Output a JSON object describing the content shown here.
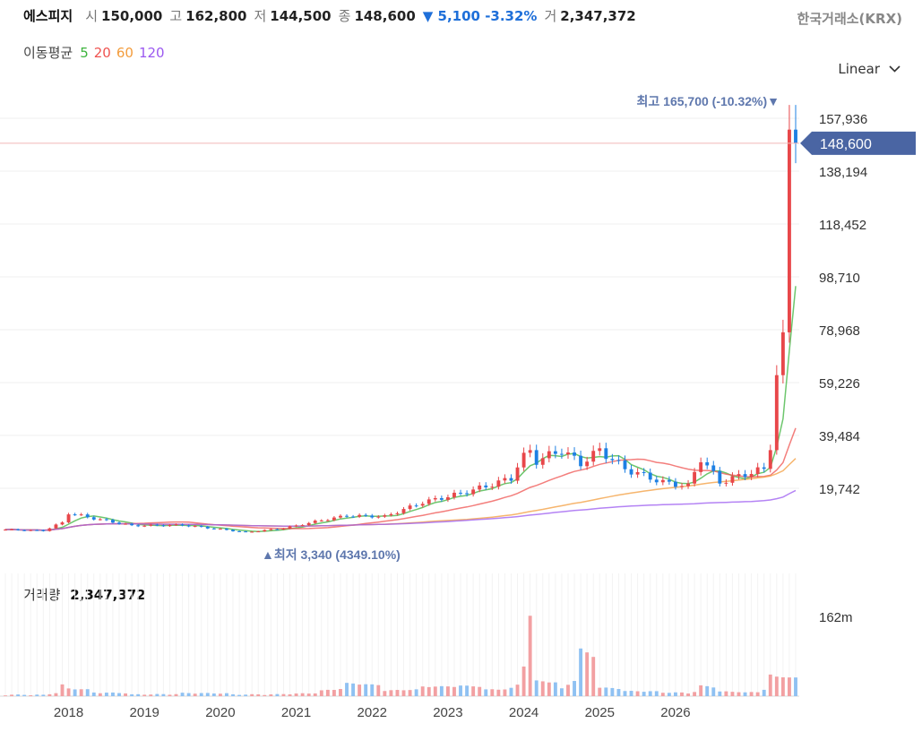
{
  "header": {
    "name": "에스피지",
    "open_label": "시",
    "open": "150,000",
    "high_label": "고",
    "high": "162,800",
    "low_label": "저",
    "low": "144,500",
    "close_label": "종",
    "close": "148,600",
    "change": "▼ 5,100 -3.32%",
    "volume_label": "거",
    "volume": "2,347,372",
    "exchange": "한국거래소(KRX)"
  },
  "moving_average": {
    "title": "이동평균",
    "periods": [
      {
        "label": "5",
        "color": "#3cb33c"
      },
      {
        "label": "20",
        "color": "#ef5350"
      },
      {
        "label": "60",
        "color": "#f39c3c"
      },
      {
        "label": "120",
        "color": "#9b59f0"
      }
    ]
  },
  "scale_select": {
    "label": "Linear",
    "icon": "chevron-down-icon"
  },
  "volume_panel": {
    "label": "거래량",
    "value": "2,347,372",
    "axis_label": "162m"
  },
  "annotations": {
    "high_text": "최고 165,700 (-10.32%)▼",
    "low_text": "▲최저 3,340 (4349.10%)",
    "last_price": "148,600"
  },
  "colors": {
    "up": "#e8474a",
    "down": "#1e80e3",
    "up_volume": "#f2a0a2",
    "down_volume": "#8fc1f2",
    "price_tag": "#4a65a3",
    "grid": "#efefef"
  },
  "chart_data": {
    "type": "candlestick",
    "interval": "monthly",
    "y_ticks": [
      "157,936",
      "138,194",
      "118,452",
      "98,710",
      "78,968",
      "59,226",
      "39,484",
      "19,742"
    ],
    "y_tick_values": [
      157936,
      138194,
      118452,
      98710,
      78968,
      59226,
      39484,
      19742
    ],
    "x_tick_labels": [
      "2018",
      "2019",
      "2020",
      "2021",
      "2022",
      "2023",
      "2024",
      "2025",
      "2026"
    ],
    "y_range": [
      0,
      172000
    ],
    "high": 165700,
    "low": 3340,
    "last": 148600,
    "volume_axis": {
      "tick": "162m",
      "tick_value": 162000000,
      "max": 162000000
    },
    "anchors": [
      {
        "t": 0,
        "c": 4300,
        "v": 1.5
      },
      {
        "t": 6,
        "c": 3900,
        "v": 1
      },
      {
        "t": 9,
        "c": 7000,
        "v": 22
      },
      {
        "t": 10,
        "c": 10500,
        "v": 14
      },
      {
        "t": 14,
        "c": 8500,
        "v": 6
      },
      {
        "t": 20,
        "c": 5800,
        "v": 2
      },
      {
        "t": 28,
        "c": 6000,
        "v": 5
      },
      {
        "t": 36,
        "c": 3900,
        "v": 2
      },
      {
        "t": 38,
        "c": 3340,
        "v": 2
      },
      {
        "t": 44,
        "c": 4800,
        "v": 3
      },
      {
        "t": 50,
        "c": 7800,
        "v": 10
      },
      {
        "t": 54,
        "c": 9500,
        "v": 25
      },
      {
        "t": 60,
        "c": 9200,
        "v": 10
      },
      {
        "t": 66,
        "c": 14500,
        "v": 18
      },
      {
        "t": 72,
        "c": 17800,
        "v": 20
      },
      {
        "t": 76,
        "c": 20500,
        "v": 12
      },
      {
        "t": 80,
        "c": 23500,
        "v": 15
      },
      {
        "t": 82,
        "c": 33000,
        "v": 60
      },
      {
        "t": 83,
        "c": 34000,
        "v": 162
      },
      {
        "t": 84,
        "c": 30000,
        "v": 30
      },
      {
        "t": 88,
        "c": 34000,
        "v": 14
      },
      {
        "t": 91,
        "c": 29000,
        "v": 95
      },
      {
        "t": 94,
        "c": 34000,
        "v": 16
      },
      {
        "t": 98,
        "c": 27000,
        "v": 9
      },
      {
        "t": 104,
        "c": 22000,
        "v": 6
      },
      {
        "t": 108,
        "c": 20500,
        "v": 5
      },
      {
        "t": 110,
        "c": 31000,
        "v": 20
      },
      {
        "t": 113,
        "c": 22000,
        "v": 8
      },
      {
        "t": 117,
        "c": 25000,
        "v": 6
      },
      {
        "t": 120,
        "c": 27000,
        "v": 12
      },
      {
        "t": 121,
        "c": 34000,
        "v": 42
      },
      {
        "t": 122,
        "c": 62000,
        "v": 38
      },
      {
        "t": 123,
        "c": 78000,
        "v": 38
      },
      {
        "t": 124,
        "c": 153700,
        "v": 38
      },
      {
        "t": 125,
        "c": 148600,
        "v": 38
      }
    ]
  }
}
